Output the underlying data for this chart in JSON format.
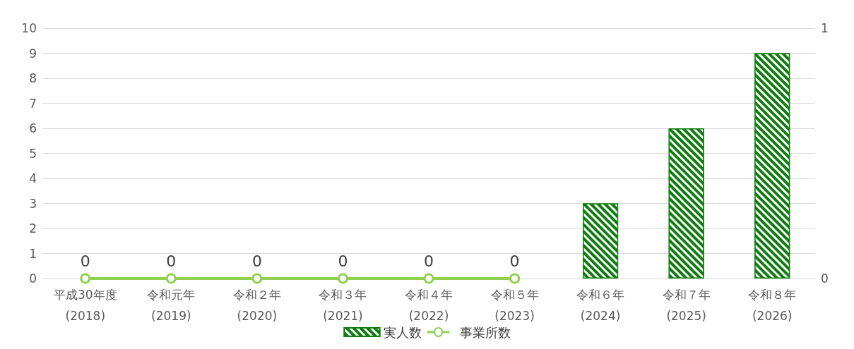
{
  "chart_data": {
    "type": "bar",
    "categories": [
      "平成30年度\n(2018)",
      "令和元年\n(2019)",
      "令和２年\n(2020)",
      "令和３年\n(2021)",
      "令和４年\n(2022)",
      "令和５年\n(2023)",
      "令和６年\n(2024)",
      "令和７年\n(2025)",
      "令和８年\n(2026)"
    ],
    "series": [
      {
        "name": "実人数",
        "color": "#107c10",
        "values": [
          null,
          null,
          null,
          null,
          null,
          null,
          3,
          6,
          9
        ]
      },
      {
        "name": "事業所数",
        "type": "line",
        "axis": "y2",
        "color": "#92d050",
        "marker": "circle",
        "values": [
          0,
          0,
          0,
          0,
          0,
          0,
          null,
          null,
          null
        ],
        "value_labels": [
          "0",
          "0",
          "0",
          "0",
          "0",
          "0",
          null,
          null,
          null
        ]
      }
    ],
    "ylim": [
      0,
      10
    ],
    "yticks": [
      0,
      1,
      2,
      3,
      4,
      5,
      6,
      7,
      8,
      9,
      10
    ],
    "y2lim": [
      0,
      1
    ],
    "y2ticks": [
      0,
      1
    ],
    "grid": "y",
    "legend": "bottom"
  }
}
